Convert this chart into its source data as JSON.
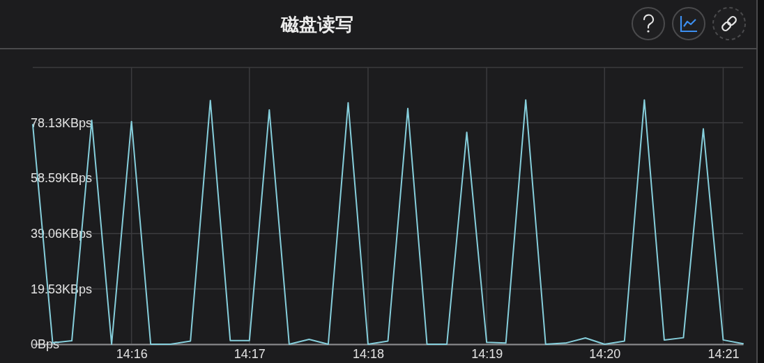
{
  "chart_data": {
    "type": "line",
    "title": "磁盘读写",
    "x": [
      14.2528,
      14.2556,
      14.2583,
      14.2611,
      14.2639,
      14.2667,
      14.2694,
      14.2722,
      14.275,
      14.2778,
      14.2806,
      14.2833,
      14.2861,
      14.2889,
      14.2917,
      14.2944,
      14.2972,
      14.3,
      14.3028,
      14.3056,
      14.3083,
      14.3111,
      14.3139,
      14.3167,
      14.3194,
      14.3222,
      14.325,
      14.3278,
      14.3306,
      14.3333,
      14.3361,
      14.3389,
      14.3417,
      14.3444,
      14.3472,
      14.35,
      14.3528
    ],
    "series": [
      {
        "color": "#86cfdc",
        "values": [
          77.5,
          0.5,
          1.2,
          79,
          0,
          78.6,
          0,
          0,
          1.1,
          86,
          1.3,
          1.3,
          82.7,
          0,
          1.7,
          0,
          85.2,
          0,
          1.1,
          83.2,
          0,
          0,
          74.8,
          0.7,
          0.4,
          86.2,
          0,
          0.4,
          2.2,
          0,
          1.1,
          86.2,
          1.5,
          2.3,
          76,
          1.5,
          0.2
        ]
      }
    ],
    "xlim": [
      14.2528,
      14.3528
    ],
    "xticks": [
      {
        "value": 14.2667,
        "label": "14:16"
      },
      {
        "value": 14.2833,
        "label": "14:17"
      },
      {
        "value": 14.3,
        "label": "14:18"
      },
      {
        "value": 14.3167,
        "label": "14:19"
      },
      {
        "value": 14.3333,
        "label": "14:20"
      },
      {
        "value": 14.35,
        "label": "14:21"
      }
    ],
    "ylim": [
      0,
      97.66
    ],
    "yticks": [
      {
        "value": 0,
        "label": "0Bps"
      },
      {
        "value": 19.53,
        "label": "19.53KBps"
      },
      {
        "value": 39.06,
        "label": "39.06KBps"
      },
      {
        "value": 58.59,
        "label": "58.59KBps"
      },
      {
        "value": 78.13,
        "label": "78.13KBps"
      },
      {
        "value": 97.66,
        "label": null
      }
    ],
    "grid": true
  }
}
